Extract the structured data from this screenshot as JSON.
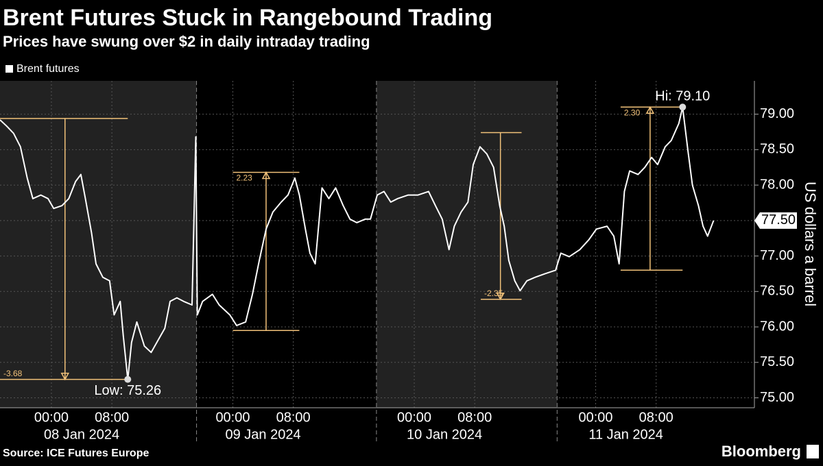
{
  "chart_data": {
    "type": "line",
    "title": "Brent Futures Stuck in Rangebound Trading",
    "subtitle": "Prices have swung over $2 in daily intraday trading",
    "y_label": "US dollars a barrel",
    "source": "Source: ICE Futures Europe",
    "brand": "Bloomberg",
    "x": [
      -6.8,
      -5.9,
      -5.0,
      -4.1,
      -3.2,
      -2.45,
      -1.4,
      -0.45,
      0.3,
      1.4,
      2.3,
      3.2,
      3.9,
      4.5,
      5.3,
      5.9,
      6.8,
      7.7,
      8.3,
      9.1,
      9.5,
      10.1,
      10.6,
      11.3,
      12.3,
      13.2,
      14.2,
      15.0,
      15.7,
      16.6,
      17.5,
      18.6,
      19.1,
      19.3,
      20.0,
      21.3,
      22.2,
      23.6,
      24.5,
      25.7,
      26.6,
      27.5,
      28.4,
      29.3,
      30.4,
      31.3,
      32.2,
      32.8,
      33.6,
      34.2,
      34.9,
      35.8,
      36.7,
      37.6,
      38.6,
      39.5,
      40.4,
      41.5,
      42.2,
      43.1,
      44.0,
      44.9,
      45.8,
      47.2,
      48.5,
      49.9,
      50.8,
      51.7,
      52.6,
      53.3,
      54.2,
      55.1,
      55.8,
      56.7,
      57.6,
      58.5,
      59.3,
      59.9,
      60.5,
      61.3,
      62.0,
      62.9,
      64.0,
      65.3,
      66.7,
      67.4,
      68.5,
      69.9,
      71.1,
      72.1,
      73.5,
      74.4,
      75.1,
      75.8,
      76.5,
      77.6,
      78.5,
      79.4,
      80.2,
      81.2,
      82.0,
      83.0,
      83.5,
      84.2,
      84.8,
      85.6,
      86.2,
      86.8,
      87.6
    ],
    "series": [
      {
        "name": "Brent futures",
        "color": "#ffffff",
        "values": [
          78.92,
          78.83,
          78.73,
          78.54,
          78.1,
          77.81,
          77.86,
          77.81,
          77.67,
          77.71,
          77.81,
          78.05,
          78.15,
          77.81,
          77.33,
          76.89,
          76.7,
          76.65,
          76.17,
          76.36,
          75.88,
          75.26,
          75.78,
          76.07,
          75.73,
          75.64,
          75.83,
          75.98,
          76.36,
          76.41,
          76.36,
          76.31,
          78.68,
          76.17,
          76.36,
          76.46,
          76.31,
          76.17,
          76.02,
          76.07,
          76.46,
          76.94,
          77.38,
          77.62,
          77.76,
          77.86,
          78.1,
          77.86,
          77.38,
          77.04,
          76.89,
          77.96,
          77.81,
          77.96,
          77.71,
          77.52,
          77.47,
          77.52,
          77.52,
          77.86,
          77.91,
          77.76,
          77.81,
          77.86,
          77.86,
          77.91,
          77.71,
          77.52,
          77.09,
          77.42,
          77.62,
          77.76,
          78.29,
          78.54,
          78.44,
          78.25,
          77.71,
          77.42,
          76.94,
          76.65,
          76.51,
          76.65,
          76.7,
          76.75,
          76.8,
          77.04,
          76.99,
          77.09,
          77.23,
          77.38,
          77.42,
          77.28,
          76.89,
          77.91,
          78.2,
          78.15,
          78.25,
          78.39,
          78.29,
          78.54,
          78.63,
          78.87,
          79.1,
          78.49,
          78.0,
          77.71,
          77.42,
          77.28,
          77.5
        ]
      }
    ],
    "xlim": [
      -6.8,
      93.0
    ],
    "ylim": [
      74.86,
      79.47
    ],
    "xticks": [
      {
        "value": 0,
        "label": "00:00"
      },
      {
        "value": 8,
        "label": "08:00"
      },
      {
        "value": 24,
        "label": "00:00"
      },
      {
        "value": 32,
        "label": "08:00"
      },
      {
        "value": 48,
        "label": "00:00"
      },
      {
        "value": 56,
        "label": "08:00"
      },
      {
        "value": 72,
        "label": "00:00"
      },
      {
        "value": 80,
        "label": "08:00"
      }
    ],
    "day_labels": [
      {
        "value": 4,
        "label": "08 Jan 2024"
      },
      {
        "value": 28,
        "label": "09 Jan 2024"
      },
      {
        "value": 52,
        "label": "10 Jan 2024"
      },
      {
        "value": 76,
        "label": "11 Jan 2024"
      }
    ],
    "session_breaks": [
      19.2,
      43.0,
      66.9
    ],
    "yticks": [
      {
        "value": 75,
        "label": "75.00"
      },
      {
        "value": 75.5,
        "label": "75.50"
      },
      {
        "value": 76,
        "label": "76.00"
      },
      {
        "value": 76.5,
        "label": "76.50"
      },
      {
        "value": 77,
        "label": "77.00"
      },
      {
        "value": 77.5,
        "label": "77.50"
      },
      {
        "value": 78,
        "label": "78.00"
      },
      {
        "value": 78.5,
        "label": "78.50"
      },
      {
        "value": 79,
        "label": "79.00"
      }
    ],
    "grid": true,
    "last_value": {
      "value": 77.5,
      "label": "77.50"
    },
    "ranges": [
      {
        "label": "-3.68",
        "from": 78.94,
        "to": 75.26,
        "x": 1.8,
        "x_start": -6.8,
        "x_end": 10.1
      },
      {
        "label": "2.23",
        "from": 75.95,
        "to": 78.18,
        "x": 28.4,
        "x_start": 24.0,
        "x_end": 32.8
      },
      {
        "label": "-2.35",
        "from": 78.74,
        "to": 76.39,
        "x": 59.4,
        "x_start": 56.8,
        "x_end": 62.2
      },
      {
        "label": "2.30",
        "from": 76.8,
        "to": 79.1,
        "x": 79.2,
        "x_start": 75.3,
        "x_end": 83.5
      }
    ],
    "markers": [
      {
        "label": "Hi: 79.10",
        "x": 83.5,
        "y": 79.1
      },
      {
        "label": "Low: 75.26",
        "x": 10.1,
        "y": 75.26
      }
    ]
  }
}
